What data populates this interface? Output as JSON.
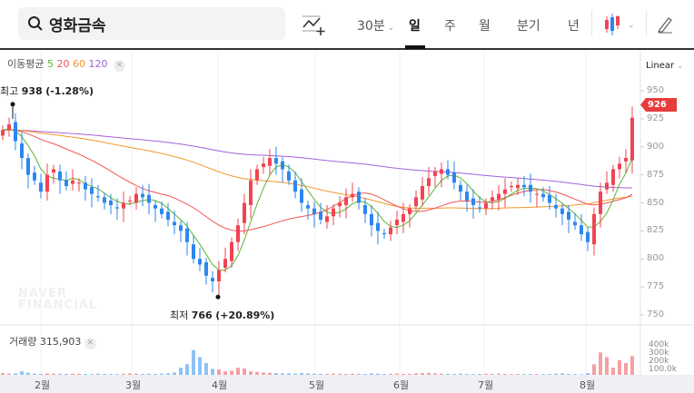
{
  "header": {
    "search_value": "영화금속",
    "interval": "30분",
    "tabs": [
      "일",
      "주",
      "월",
      "분기",
      "년"
    ],
    "active_tab": "일"
  },
  "indicator": {
    "label": "이동평균",
    "periods": [
      "5",
      "20",
      "60",
      "120"
    ],
    "colors": [
      "#5bb532",
      "#f25454",
      "#f5962a",
      "#a561dc"
    ]
  },
  "scale_mode": "Linear",
  "price_axis": [
    "950",
    "925",
    "900",
    "875",
    "850",
    "825",
    "800",
    "775",
    "750"
  ],
  "current_price": "926",
  "high_label": {
    "prefix": "최고",
    "value": "938",
    "change": "(-1.28%)"
  },
  "low_label": {
    "prefix": "최저",
    "value": "766",
    "change": "(+20.89%)"
  },
  "watermark": [
    "NAVER",
    "FINANCIAL"
  ],
  "volume": {
    "label": "거래량",
    "value": "315,903",
    "axis": [
      "400k",
      "300k",
      "200k",
      "100.0k"
    ]
  },
  "months": [
    "2월",
    "3월",
    "4월",
    "5월",
    "6월",
    "7월",
    "8월"
  ],
  "colors": {
    "up": "#f04452",
    "down": "#2d86f0",
    "up_vol": "#f4a0a5",
    "down_vol": "#8fc1f7"
  },
  "closes": [
    915,
    920,
    905,
    890,
    875,
    870,
    860,
    875,
    880,
    870,
    865,
    870,
    868,
    862,
    858,
    855,
    850,
    848,
    845,
    850,
    852,
    858,
    855,
    850,
    845,
    840,
    835,
    830,
    825,
    815,
    800,
    795,
    785,
    780,
    790,
    800,
    815,
    830,
    850,
    870,
    880,
    885,
    890,
    885,
    880,
    870,
    860,
    850,
    845,
    840,
    835,
    838,
    845,
    850,
    855,
    858,
    850,
    840,
    830,
    825,
    822,
    828,
    835,
    840,
    845,
    855,
    865,
    872,
    878,
    880,
    875,
    868,
    860,
    852,
    848,
    845,
    850,
    855,
    858,
    862,
    865,
    866,
    864,
    860,
    858,
    855,
    850,
    845,
    840,
    835,
    830,
    822,
    815,
    840,
    860,
    868,
    880,
    885,
    890,
    926
  ],
  "volumes_k": [
    30,
    20,
    25,
    60,
    35,
    20,
    15,
    25,
    20,
    18,
    15,
    20,
    18,
    15,
    12,
    20,
    15,
    14,
    12,
    18,
    25,
    20,
    15,
    18,
    15,
    20,
    25,
    40,
    120,
    180,
    420,
    300,
    200,
    100,
    90,
    60,
    70,
    120,
    110,
    60,
    50,
    40,
    35,
    30,
    25,
    25,
    20,
    30,
    25,
    20,
    18,
    15,
    20,
    18,
    15,
    20,
    18,
    15,
    25,
    20,
    15,
    18,
    20,
    15,
    18,
    25,
    30,
    35,
    25,
    20,
    18,
    15,
    20,
    15,
    12,
    15,
    18,
    15,
    20,
    15,
    12,
    15,
    12,
    15,
    14,
    12,
    15,
    20,
    25,
    15,
    12,
    10,
    30,
    180,
    380,
    300,
    120,
    250,
    200,
    320
  ]
}
